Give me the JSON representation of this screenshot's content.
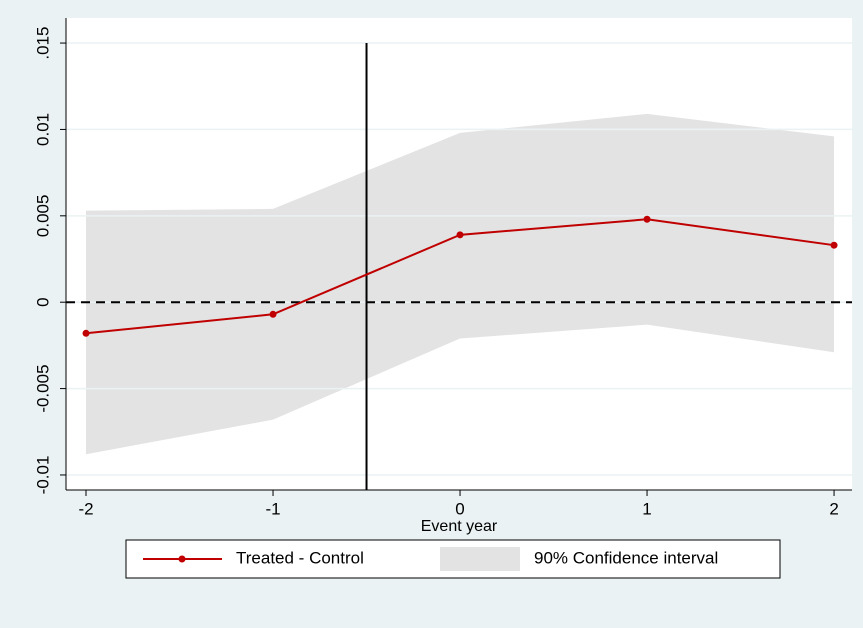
{
  "chart_data": {
    "type": "line",
    "x": [
      -2,
      -1,
      0,
      1,
      2
    ],
    "xlabel": "Event year",
    "series": [
      {
        "name": "Treated - Control",
        "color": "#c00000",
        "values": [
          -0.0018,
          -0.0007,
          0.0039,
          0.0048,
          0.0033
        ]
      }
    ],
    "band": {
      "name": "90% Confidence interval",
      "color": "#e3e3e3",
      "lower": [
        -0.0088,
        -0.0068,
        -0.0021,
        -0.0013,
        -0.0029
      ],
      "upper": [
        0.0053,
        0.0054,
        0.0098,
        0.0109,
        0.0096
      ]
    },
    "vline": -0.5,
    "hline": 0,
    "xlim": [
      -2.107,
      2.096
    ],
    "ylim": [
      -0.01087,
      0.01645
    ],
    "xticks": [
      -2,
      -1,
      0,
      1,
      2
    ],
    "yticks": [
      -0.01,
      -0.005,
      0,
      0.005,
      0.01,
      {
        "value": 0.015,
        "label": ".015"
      }
    ],
    "grid": true,
    "legend": "bottom"
  }
}
